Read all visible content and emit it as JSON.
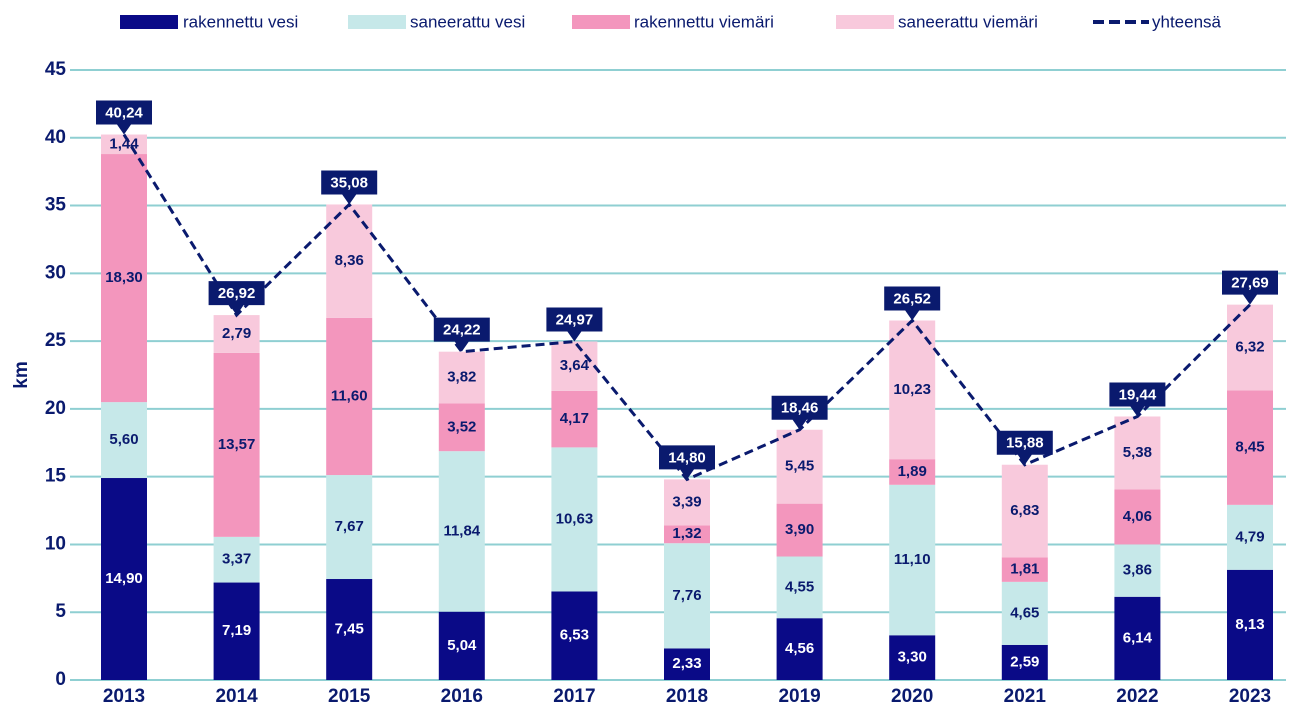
{
  "chart_data": {
    "type": "bar",
    "stacked": true,
    "ylabel": "km",
    "categories": [
      "2013",
      "2014",
      "2015",
      "2016",
      "2017",
      "2018",
      "2019",
      "2020",
      "2021",
      "2022",
      "2023"
    ],
    "ylim": [
      0,
      45
    ],
    "yticks": [
      0,
      5,
      10,
      15,
      20,
      25,
      30,
      35,
      40,
      45
    ],
    "grid": true,
    "legend": "top",
    "series": [
      {
        "name": "rakennettu vesi",
        "color": "#0a0a87",
        "values": [
          14.9,
          7.19,
          7.45,
          5.04,
          6.53,
          2.33,
          4.56,
          3.3,
          2.59,
          6.14,
          8.13
        ],
        "value_labels": [
          "14,90",
          "7,19",
          "7,45",
          "5,04",
          "6,53",
          "2,33",
          "4,56",
          "3,30",
          "2,59",
          "6,14",
          "8,13"
        ]
      },
      {
        "name": "saneerattu vesi",
        "color": "#c6e8e9",
        "values": [
          5.6,
          3.37,
          7.67,
          11.84,
          10.63,
          7.76,
          4.55,
          11.1,
          4.65,
          3.86,
          4.79
        ],
        "value_labels": [
          "5,60",
          "3,37",
          "7,67",
          "11,84",
          "10,63",
          "7,76",
          "4,55",
          "11,10",
          "4,65",
          "3,86",
          "4,79"
        ]
      },
      {
        "name": "rakennettu viemäri",
        "color": "#f396bd",
        "values": [
          18.3,
          13.57,
          11.6,
          3.52,
          4.17,
          1.32,
          3.9,
          1.89,
          1.81,
          4.06,
          8.45
        ],
        "value_labels": [
          "18,30",
          "13,57",
          "11,60",
          "3,52",
          "4,17",
          "1,32",
          "3,90",
          "1,89",
          "1,81",
          "4,06",
          "8,45"
        ]
      },
      {
        "name": "saneerattu viemäri",
        "color": "#f8c9dc",
        "values": [
          1.44,
          2.79,
          8.36,
          3.82,
          3.64,
          3.39,
          5.45,
          10.23,
          6.83,
          5.38,
          6.32
        ],
        "value_labels": [
          "1,44",
          "2,79",
          "8,36",
          "3,82",
          "3,64",
          "3,39",
          "5,45",
          "10,23",
          "6,83",
          "5,38",
          "6,32"
        ]
      },
      {
        "name": "yhteensä",
        "type": "line",
        "color": "#0a1a6e",
        "values": [
          40.24,
          26.92,
          35.08,
          24.22,
          24.97,
          14.8,
          18.46,
          26.52,
          15.88,
          19.44,
          27.69
        ],
        "value_labels": [
          "40,24",
          "26,92",
          "35,08",
          "24,22",
          "24,97",
          "14,80",
          "18,46",
          "26,52",
          "15,88",
          "19,44",
          "27,69"
        ]
      }
    ]
  }
}
